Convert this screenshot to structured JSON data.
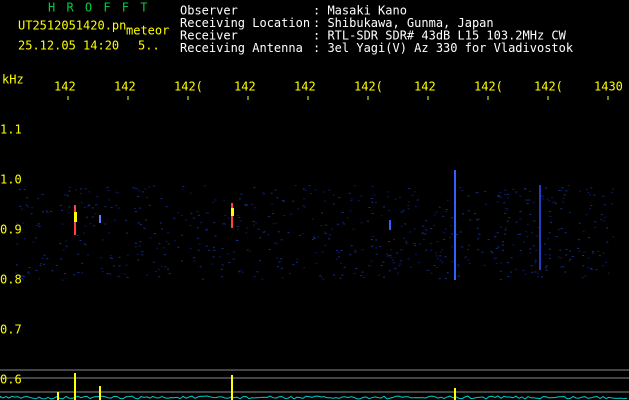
{
  "header": {
    "app": "H R O F F T",
    "file": "UT2512051420.pn",
    "mode": "meteor",
    "date": "25.12.05 14:20",
    "status": "5.."
  },
  "info": [
    {
      "label": "Observer",
      "value": ": Masaki Kano"
    },
    {
      "label": "Receiving Location",
      "value": ": Shibukawa, Gunma, Japan"
    },
    {
      "label": "Receiver",
      "value": ": RTL-SDR SDR# 43dB L15 103.2MHz CW"
    },
    {
      "label": "Receiving Antenna",
      "value": ": 3el Yagi(V) Az 330 for Vladivostok"
    }
  ],
  "axis": {
    "unit": "kHz",
    "x_labels": [
      "142",
      "142",
      "142(",
      "142",
      "142",
      "142(",
      "142",
      "142(",
      "142(",
      "1430"
    ],
    "y_labels": [
      "1.1",
      "1.0",
      "0.9",
      "0.8",
      "0.7",
      "0.6"
    ]
  }
}
